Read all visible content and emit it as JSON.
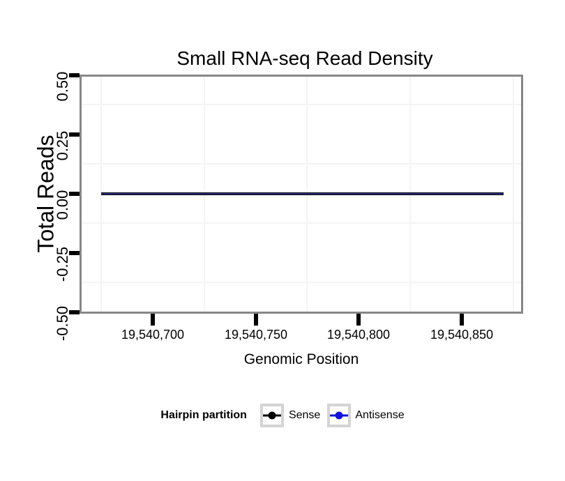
{
  "chart_data": {
    "type": "line",
    "title": "Small RNA-seq Read Density",
    "xlabel": "Genomic Position",
    "ylabel": "Total Reads",
    "xlim": [
      19540665,
      19540880
    ],
    "ylim": [
      -0.5,
      0.5
    ],
    "grid": "minor gridlines only, very light gray on white panel",
    "legend_position": "bottom",
    "legend_title": "Hairpin partition",
    "x_ticks": {
      "values": [
        19540700,
        19540750,
        19540800,
        19540850
      ],
      "labels": [
        "19,540,700",
        "19,540,750",
        "19,540,800",
        "19,540,850"
      ]
    },
    "y_ticks": {
      "values": [
        0.5,
        0.25,
        0,
        -0.25,
        -0.5
      ],
      "labels": [
        "0.50",
        "0.25",
        "0.00",
        "-0.25",
        "-0.50"
      ]
    },
    "x": [
      19540675,
      19540870
    ],
    "series": [
      {
        "name": "Sense",
        "color": "#000000",
        "values": [
          0,
          0
        ]
      },
      {
        "name": "Antisense",
        "color": "#1111e0",
        "values": [
          0,
          0
        ]
      }
    ]
  },
  "colors": {
    "panel_border": "#878787",
    "minor_gridline": "#f4f4f4",
    "tick_marks": "#000000",
    "legend_key_border": "#d4d4d4",
    "overlap_line_core": "#2b2b80",
    "background": "#ffffff"
  }
}
